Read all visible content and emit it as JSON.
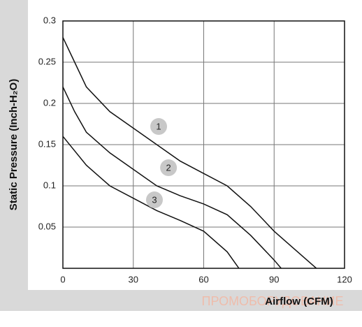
{
  "chart_data": {
    "type": "line",
    "y_label": "Static Pressure (Inch-H₂O)",
    "x_label": "Airflow (CFM)",
    "watermark": "ПРОМОБОРУДОВАНИЕ",
    "xlim": [
      0,
      120
    ],
    "xticks": [
      0,
      30,
      60,
      90,
      120
    ],
    "ylim": [
      0,
      0.3
    ],
    "yticks": [
      0.05,
      0.1,
      0.15,
      0.2,
      0.25,
      0.3
    ],
    "grid": true,
    "series": [
      {
        "color": "#111111",
        "x": [
          0,
          5,
          10,
          20,
          30,
          40,
          50,
          60,
          70,
          80,
          90,
          100,
          108
        ],
        "values": [
          0.28,
          0.25,
          0.22,
          0.19,
          0.17,
          0.15,
          0.13,
          0.115,
          0.1,
          0.075,
          0.045,
          0.02,
          0
        ]
      },
      {
        "color": "#111111",
        "x": [
          0,
          5,
          10,
          20,
          30,
          40,
          50,
          60,
          70,
          80,
          90,
          93
        ],
        "values": [
          0.22,
          0.19,
          0.165,
          0.14,
          0.12,
          0.1,
          0.088,
          0.078,
          0.065,
          0.04,
          0.01,
          0
        ]
      },
      {
        "color": "#111111",
        "x": [
          0,
          10,
          20,
          30,
          40,
          50,
          60,
          70,
          75
        ],
        "values": [
          0.16,
          0.125,
          0.1,
          0.085,
          0.07,
          0.058,
          0.045,
          0.02,
          0
        ]
      }
    ],
    "annotations": [
      {
        "text": "1",
        "x": 40.8,
        "y": 0.172
      },
      {
        "text": "2",
        "x": 45,
        "y": 0.122
      },
      {
        "text": "3",
        "x": 39,
        "y": 0.083
      }
    ]
  }
}
